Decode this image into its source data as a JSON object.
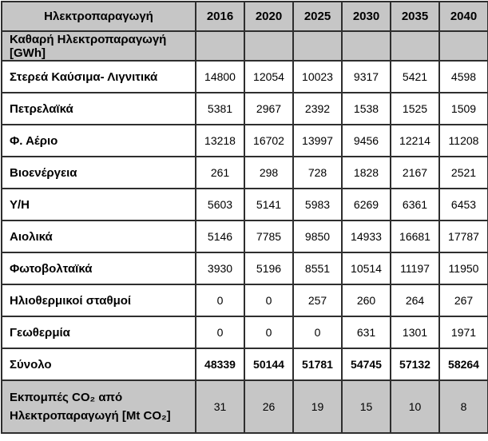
{
  "chart_data": {
    "type": "table",
    "title": "Ηλεκτροπαραγωγή",
    "columns": [
      "Ηλεκτροπαραγωγή",
      "2016",
      "2020",
      "2025",
      "2030",
      "2035",
      "2040"
    ],
    "section_header": "Καθαρή Ηλεκτροπαραγωγή [GWh]",
    "rows": [
      {
        "label": "Στερεά Καύσιμα- Λιγνιτικά",
        "values": [
          14800,
          12054,
          10023,
          9317,
          5421,
          4598
        ]
      },
      {
        "label": "Πετρελαϊκά",
        "values": [
          5381,
          2967,
          2392,
          1538,
          1525,
          1509
        ]
      },
      {
        "label": "Φ. Αέριο",
        "values": [
          13218,
          16702,
          13997,
          9456,
          12214,
          11208
        ]
      },
      {
        "label": "Βιοενέργεια",
        "values": [
          261,
          298,
          728,
          1828,
          2167,
          2521
        ]
      },
      {
        "label": "Υ/Η",
        "values": [
          5603,
          5141,
          5983,
          6269,
          6361,
          6453
        ]
      },
      {
        "label": "Αιολικά",
        "values": [
          5146,
          7785,
          9850,
          14933,
          16681,
          17787
        ]
      },
      {
        "label": "Φωτοβολταϊκά",
        "values": [
          3930,
          5196,
          8551,
          10514,
          11197,
          11950
        ]
      },
      {
        "label": "Ηλιοθερμικοί σταθμοί",
        "values": [
          0,
          0,
          257,
          260,
          264,
          267
        ]
      },
      {
        "label": "Γεωθερμία",
        "values": [
          0,
          0,
          0,
          631,
          1301,
          1971
        ]
      }
    ],
    "total_row": {
      "label": "Σύνολο",
      "values": [
        48339,
        50144,
        51781,
        54745,
        57132,
        58264
      ]
    },
    "emissions_row": {
      "label_lines": [
        "Εκπομπές CO₂ από",
        "Ηλεκτροπαραγωγή [Mt CO₂]"
      ],
      "values": [
        31,
        26,
        19,
        15,
        10,
        8
      ]
    },
    "colors": {
      "band_background": "#c6c6c6",
      "border": "#2e2e2e",
      "text": "#000000",
      "cell_background": "#ffffff"
    }
  }
}
